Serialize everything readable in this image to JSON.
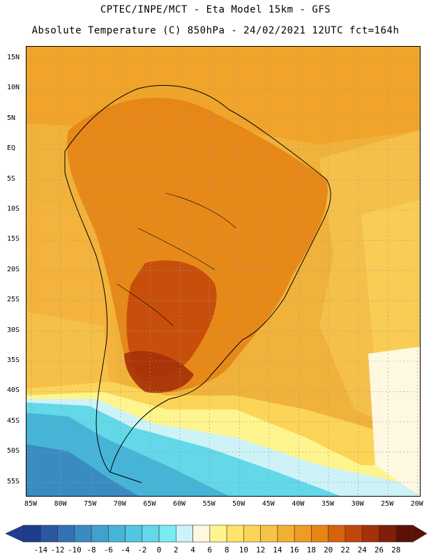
{
  "header": {
    "line1": "CPTEC/INPE/MCT -  Eta Model 15km - GFS",
    "line2": "Absolute Temperature (C) 850hPa - 24/02/2021 12UTC fct=164h"
  },
  "map": {
    "lat_labels": [
      "15N",
      "10N",
      "5N",
      "EQ",
      "5S",
      "10S",
      "15S",
      "20S",
      "25S",
      "30S",
      "35S",
      "40S",
      "45S",
      "50S",
      "55S"
    ],
    "lon_labels": [
      "85W",
      "80W",
      "75W",
      "70W",
      "65W",
      "60W",
      "55W",
      "50W",
      "45W",
      "40W",
      "35W",
      "30W",
      "25W",
      "20W"
    ]
  },
  "colorbar": {
    "values": [
      "-14",
      "-12",
      "-10",
      "-8",
      "-6",
      "-4",
      "-2",
      "0",
      "2",
      "4",
      "6",
      "8",
      "10",
      "12",
      "14",
      "16",
      "18",
      "20",
      "22",
      "24",
      "26",
      "28"
    ],
    "colors": [
      "#1f3c8f",
      "#2b57a2",
      "#3473b3",
      "#3a8bc2",
      "#41a0cc",
      "#46b4d6",
      "#52c6e0",
      "#62d8e8",
      "#79ecf2",
      "#cdf3f8",
      "#fff8e0",
      "#fff58f",
      "#ffe36a",
      "#fcd457",
      "#f7c248",
      "#f2b030",
      "#ef9d22",
      "#e68416",
      "#d8620c",
      "#c24509",
      "#a53108",
      "#7f1f0a",
      "#5c1008"
    ]
  }
}
